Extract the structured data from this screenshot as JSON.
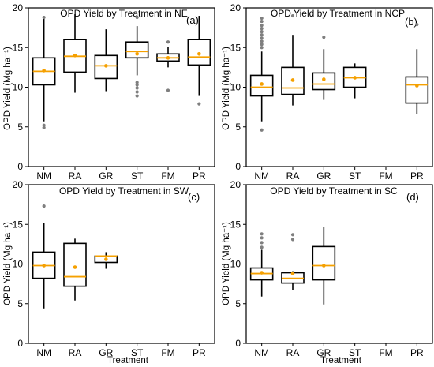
{
  "colors": {
    "box": "#000000",
    "median": "#f5a000",
    "mean": "#f5a000",
    "outlier": "#7f7f7f"
  },
  "chart_data": [
    {
      "type": "box",
      "title": "OPD Yield by Treatment in NE",
      "tag": "(a)",
      "ylabel": "OPD Yield (Mg ha⁻¹)",
      "xlabel": "",
      "ylim": [
        0,
        20
      ],
      "yticks": [
        0,
        5,
        10,
        15,
        20
      ],
      "categories": [
        "NM",
        "RA",
        "GR",
        "ST",
        "FM",
        "PR"
      ],
      "boxes": [
        {
          "cat": "NM",
          "whislo": 5.7,
          "q1": 10.3,
          "med": 12.0,
          "q3": 13.7,
          "whishi": 19.0,
          "mean": 12.1,
          "fliers": [
            4.9,
            5.2,
            18.8
          ]
        },
        {
          "cat": "RA",
          "whislo": 9.3,
          "q1": 11.9,
          "med": 13.9,
          "q3": 16.0,
          "whishi": 19.2,
          "mean": 14.0,
          "fliers": []
        },
        {
          "cat": "GR",
          "whislo": 9.5,
          "q1": 11.1,
          "med": 12.7,
          "q3": 14.0,
          "whishi": 17.3,
          "mean": 12.7,
          "fliers": []
        },
        {
          "cat": "ST",
          "whislo": 11.5,
          "q1": 13.7,
          "med": 14.5,
          "q3": 15.7,
          "whishi": 17.7,
          "mean": 14.2,
          "fliers": [
            8.9,
            9.4,
            9.9,
            10.3,
            10.6,
            18.8
          ]
        },
        {
          "cat": "FM",
          "whislo": 12.5,
          "q1": 13.3,
          "med": 13.7,
          "q3": 14.2,
          "whishi": 15.1,
          "mean": 13.7,
          "fliers": [
            9.6,
            15.7
          ]
        },
        {
          "cat": "PR",
          "whislo": 8.9,
          "q1": 12.8,
          "med": 13.8,
          "q3": 16.0,
          "whishi": 19.0,
          "mean": 14.2,
          "fliers": [
            7.9
          ]
        }
      ]
    },
    {
      "type": "box",
      "title": "OPD Yield by Treatment in NCP",
      "tag": "(b)",
      "ylabel": "OPD Yield (Mg ha⁻¹)",
      "xlabel": "",
      "ylim": [
        0,
        20
      ],
      "yticks": [
        0,
        5,
        10,
        15,
        20
      ],
      "categories": [
        "NM",
        "RA",
        "GR",
        "ST",
        "FM",
        "PR"
      ],
      "boxes": [
        {
          "cat": "NM",
          "whislo": 5.7,
          "q1": 8.9,
          "med": 10.0,
          "q3": 11.5,
          "whishi": 14.5,
          "mean": 10.4,
          "fliers": [
            4.6,
            15.0,
            15.4,
            15.8,
            16.2,
            16.6,
            17.0,
            17.4,
            17.8,
            18.3,
            18.7
          ]
        },
        {
          "cat": "RA",
          "whislo": 7.7,
          "q1": 9.1,
          "med": 9.9,
          "q3": 12.5,
          "whishi": 16.6,
          "mean": 10.9,
          "fliers": [
            19.0
          ]
        },
        {
          "cat": "GR",
          "whislo": 8.4,
          "q1": 9.7,
          "med": 10.4,
          "q3": 11.8,
          "whishi": 14.8,
          "mean": 11.0,
          "fliers": [
            16.3
          ]
        },
        {
          "cat": "ST",
          "whislo": 8.6,
          "q1": 10.0,
          "med": 11.2,
          "q3": 12.5,
          "whishi": 13.0,
          "mean": 11.2,
          "fliers": []
        },
        {
          "cat": "PR",
          "whislo": 6.6,
          "q1": 8.0,
          "med": 10.3,
          "q3": 11.3,
          "whishi": 14.8,
          "mean": 10.2,
          "fliers": [
            17.9
          ]
        }
      ]
    },
    {
      "type": "box",
      "title": "OPD Yield by Treatment in SW",
      "tag": "(c)",
      "ylabel": "OPD Yield (Mg ha⁻¹)",
      "xlabel": "Treatment",
      "ylim": [
        0,
        20
      ],
      "yticks": [
        0,
        5,
        10,
        15,
        20
      ],
      "categories": [
        "NM",
        "RA",
        "GR",
        "ST",
        "FM",
        "PR"
      ],
      "boxes": [
        {
          "cat": "NM",
          "whislo": 4.4,
          "q1": 8.2,
          "med": 9.8,
          "q3": 11.5,
          "whishi": 15.2,
          "mean": 9.8,
          "fliers": [
            17.3
          ]
        },
        {
          "cat": "RA",
          "whislo": 5.4,
          "q1": 7.2,
          "med": 8.4,
          "q3": 12.6,
          "whishi": 13.2,
          "mean": 9.6,
          "fliers": []
        },
        {
          "cat": "GR",
          "whislo": 9.4,
          "q1": 10.2,
          "med": 11.0,
          "q3": 11.0,
          "whishi": 11.5,
          "mean": 10.6,
          "fliers": []
        }
      ]
    },
    {
      "type": "box",
      "title": "OPD Yield by Treatment in SC",
      "tag": "(d)",
      "ylabel": "OPD Yield (Mg ha⁻¹)",
      "xlabel": "Treatment",
      "ylim": [
        0,
        20
      ],
      "yticks": [
        0,
        5,
        10,
        15,
        20
      ],
      "categories": [
        "NM",
        "RA",
        "GR",
        "ST",
        "FM",
        "PR"
      ],
      "boxes": [
        {
          "cat": "NM",
          "whislo": 5.9,
          "q1": 8.0,
          "med": 8.8,
          "q3": 9.5,
          "whishi": 11.8,
          "mean": 8.9,
          "fliers": [
            12.1,
            12.7,
            13.3,
            13.8
          ]
        },
        {
          "cat": "RA",
          "whislo": 6.7,
          "q1": 7.6,
          "med": 8.2,
          "q3": 8.9,
          "whishi": 9.1,
          "mean": 8.8,
          "fliers": [
            13.1,
            13.7
          ]
        },
        {
          "cat": "GR",
          "whislo": 4.9,
          "q1": 8.0,
          "med": 9.8,
          "q3": 12.2,
          "whishi": 14.7,
          "mean": 9.8,
          "fliers": []
        }
      ]
    }
  ]
}
